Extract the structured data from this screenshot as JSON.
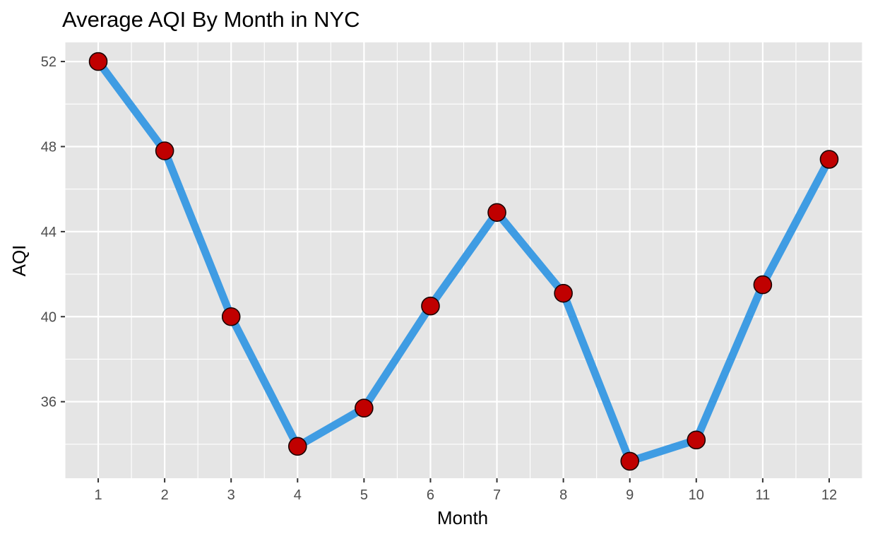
{
  "chart_data": {
    "type": "line",
    "title": "Average AQI By Month in NYC",
    "xlabel": "Month",
    "ylabel": "AQI",
    "x": [
      1,
      2,
      3,
      4,
      5,
      6,
      7,
      8,
      9,
      10,
      11,
      12
    ],
    "x_tick_labels": [
      "1",
      "2",
      "3",
      "4",
      "5",
      "6",
      "7",
      "8",
      "9",
      "10",
      "11",
      "12"
    ],
    "y_ticks": [
      36,
      40,
      44,
      48,
      52
    ],
    "y_tick_labels": [
      "36",
      "40",
      "44",
      "48",
      "52"
    ],
    "xlim": [
      0.5,
      12.5
    ],
    "ylim": [
      32.4,
      52.9
    ],
    "grid": true,
    "series": [
      {
        "values": [
          52.0,
          47.8,
          40.0,
          33.9,
          35.7,
          40.5,
          44.9,
          41.1,
          33.2,
          34.2,
          41.5,
          47.4
        ]
      }
    ],
    "colors": {
      "line": "#3f9ce3",
      "point_fill": "#c00000",
      "point_stroke": "#1a0000",
      "panel_background": "#e5e5e5",
      "grid": "#ffffff"
    }
  }
}
